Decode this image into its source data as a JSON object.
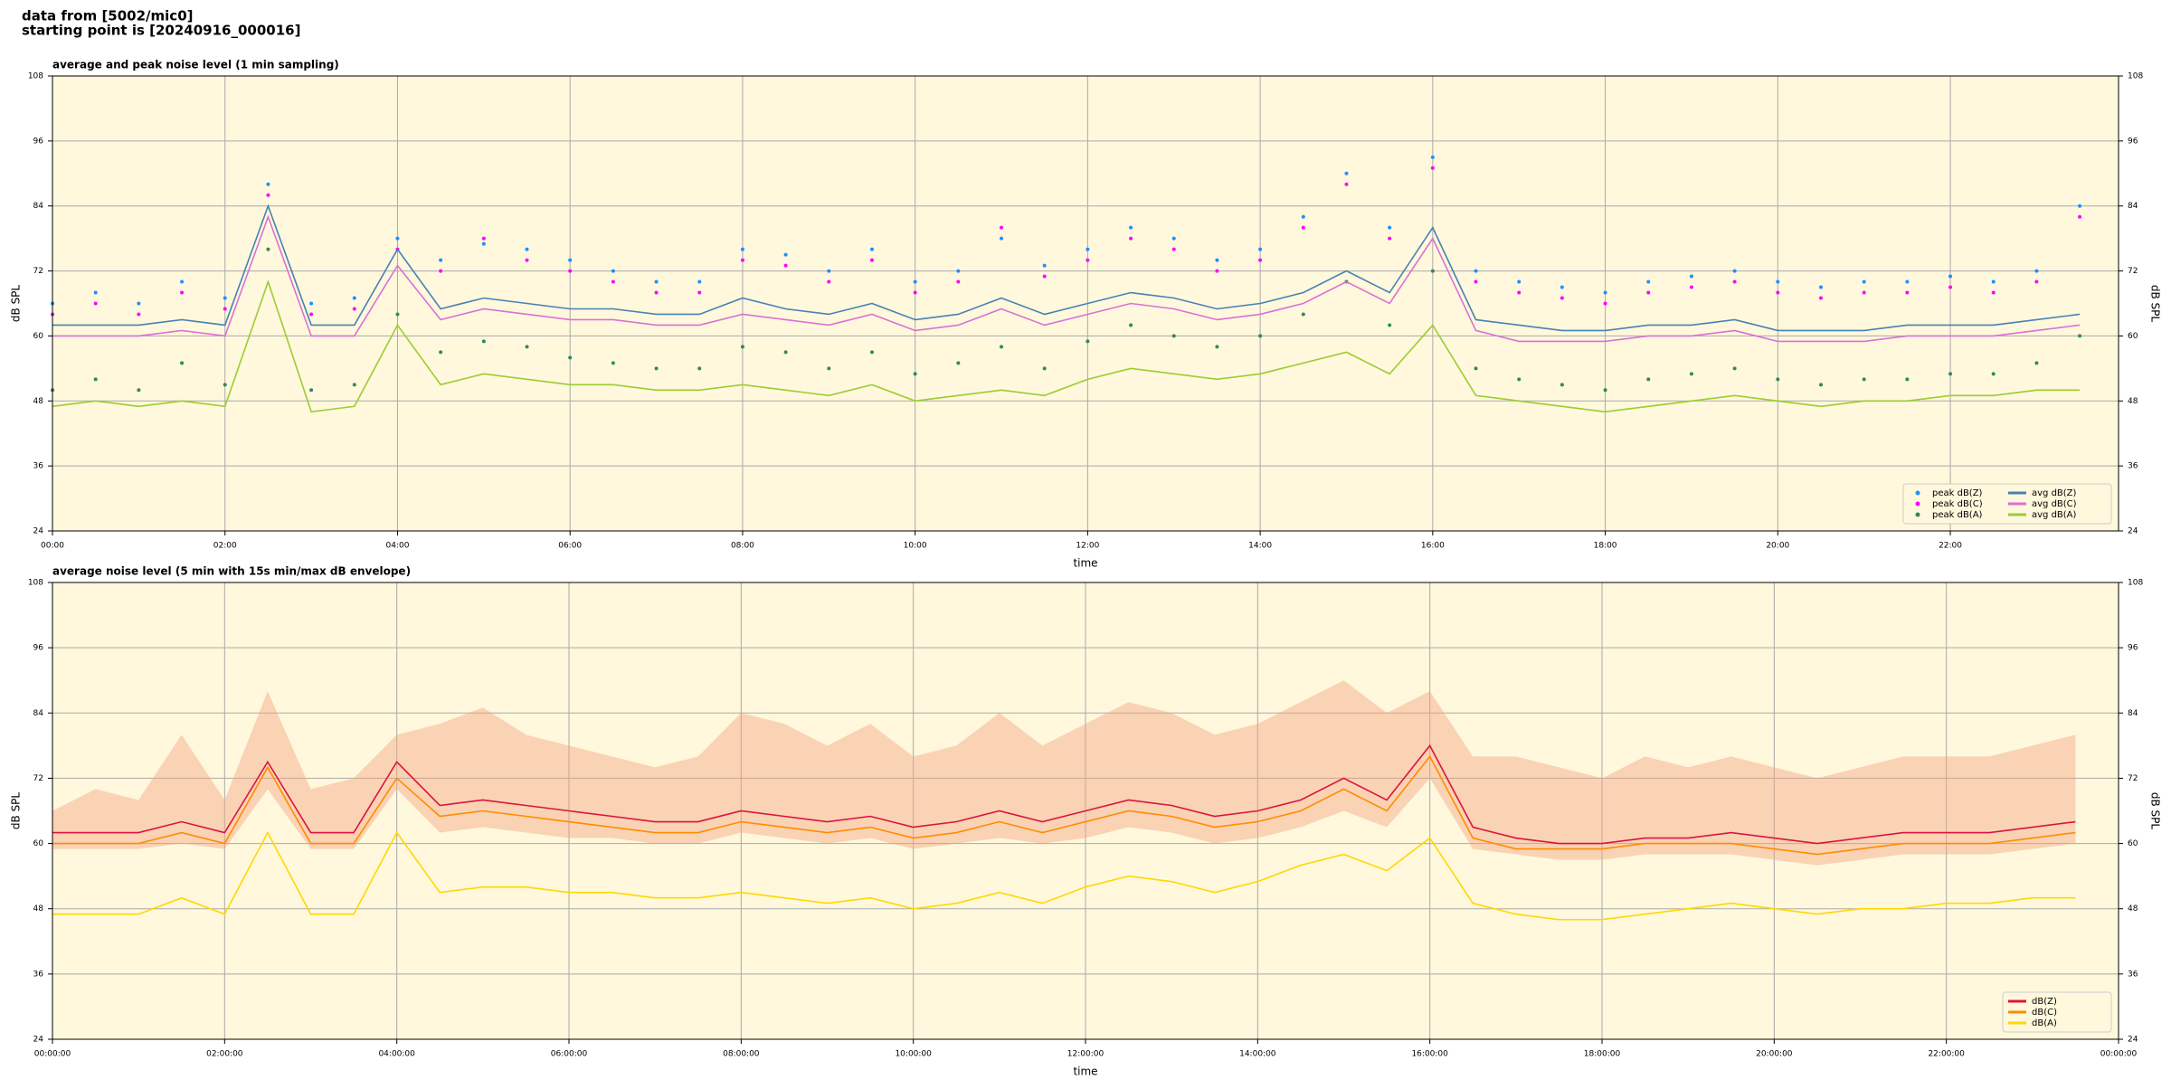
{
  "header": {
    "line1": "data from [5002/mic0]",
    "line2": "starting point is [20240916_000016]"
  },
  "chart_data": [
    {
      "type": "line",
      "title": "average and peak noise level (1 min sampling)",
      "xlabel": "time",
      "ylabel": "dB SPL",
      "x": [
        0,
        0.5,
        1,
        1.5,
        2,
        2.5,
        3,
        3.5,
        4,
        4.5,
        5,
        5.5,
        6,
        6.5,
        7,
        7.5,
        8,
        8.5,
        9,
        9.5,
        10,
        10.5,
        11,
        11.5,
        12,
        12.5,
        13,
        13.5,
        14,
        14.5,
        15,
        15.5,
        16,
        16.5,
        17,
        17.5,
        18,
        18.5,
        19,
        19.5,
        20,
        20.5,
        21,
        21.5,
        22,
        22.5,
        23,
        23.5
      ],
      "xlim": [
        0,
        23.95
      ],
      "ylim": [
        24,
        108
      ],
      "yticks": [
        24,
        36,
        48,
        60,
        72,
        84,
        96,
        108
      ],
      "xticks": [
        {
          "value": 0,
          "label": "00:00"
        },
        {
          "value": 2,
          "label": "02:00"
        },
        {
          "value": 4,
          "label": "04:00"
        },
        {
          "value": 6,
          "label": "06:00"
        },
        {
          "value": 8,
          "label": "08:00"
        },
        {
          "value": 10,
          "label": "10:00"
        },
        {
          "value": 12,
          "label": "12:00"
        },
        {
          "value": 14,
          "label": "14:00"
        },
        {
          "value": 16,
          "label": "16:00"
        },
        {
          "value": 18,
          "label": "18:00"
        },
        {
          "value": 20,
          "label": "20:00"
        },
        {
          "value": 22,
          "label": "22:00"
        }
      ],
      "grid": true,
      "legend": "lower right",
      "background": "#fff8dc",
      "series": [
        {
          "name": "peak dB(Z)",
          "mode": "markers",
          "color": "#1e90ff",
          "values": [
            66,
            68,
            66,
            70,
            67,
            88,
            66,
            67,
            78,
            74,
            77,
            76,
            74,
            72,
            70,
            70,
            76,
            75,
            72,
            76,
            70,
            72,
            78,
            73,
            76,
            80,
            78,
            74,
            76,
            82,
            90,
            80,
            93,
            72,
            70,
            69,
            68,
            70,
            71,
            72,
            70,
            69,
            70,
            70,
            71,
            70,
            72,
            84
          ]
        },
        {
          "name": "peak dB(C)",
          "mode": "markers",
          "color": "#ff00ff",
          "values": [
            64,
            66,
            64,
            68,
            65,
            86,
            64,
            65,
            76,
            72,
            78,
            74,
            72,
            70,
            68,
            68,
            74,
            73,
            70,
            74,
            68,
            70,
            80,
            71,
            74,
            78,
            76,
            72,
            74,
            80,
            88,
            78,
            91,
            70,
            68,
            67,
            66,
            68,
            69,
            70,
            68,
            67,
            68,
            68,
            69,
            68,
            70,
            82
          ]
        },
        {
          "name": "peak dB(A)",
          "mode": "markers",
          "color": "#2e8b57",
          "values": [
            50,
            52,
            50,
            55,
            51,
            76,
            50,
            51,
            64,
            57,
            59,
            58,
            56,
            55,
            54,
            54,
            58,
            57,
            54,
            57,
            53,
            55,
            58,
            54,
            59,
            62,
            60,
            58,
            60,
            64,
            70,
            62,
            72,
            54,
            52,
            51,
            50,
            52,
            53,
            54,
            52,
            51,
            52,
            52,
            53,
            53,
            55,
            60
          ]
        },
        {
          "name": "avg dB(Z)",
          "mode": "line",
          "color": "#4682b4",
          "values": [
            62,
            62,
            62,
            63,
            62,
            84,
            62,
            62,
            76,
            65,
            67,
            66,
            65,
            65,
            64,
            64,
            67,
            65,
            64,
            66,
            63,
            64,
            67,
            64,
            66,
            68,
            67,
            65,
            66,
            68,
            72,
            68,
            80,
            63,
            62,
            61,
            61,
            62,
            62,
            63,
            61,
            61,
            61,
            62,
            62,
            62,
            63,
            64
          ]
        },
        {
          "name": "avg dB(C)",
          "mode": "line",
          "color": "#da70d6",
          "values": [
            60,
            60,
            60,
            61,
            60,
            82,
            60,
            60,
            73,
            63,
            65,
            64,
            63,
            63,
            62,
            62,
            64,
            63,
            62,
            64,
            61,
            62,
            65,
            62,
            64,
            66,
            65,
            63,
            64,
            66,
            70,
            66,
            78,
            61,
            59,
            59,
            59,
            60,
            60,
            61,
            59,
            59,
            59,
            60,
            60,
            60,
            61,
            62
          ]
        },
        {
          "name": "avg dB(A)",
          "mode": "line",
          "color": "#9acd32",
          "values": [
            47,
            48,
            47,
            48,
            47,
            70,
            46,
            47,
            62,
            51,
            53,
            52,
            51,
            51,
            50,
            50,
            51,
            50,
            49,
            51,
            48,
            49,
            50,
            49,
            52,
            54,
            53,
            52,
            53,
            55,
            57,
            53,
            62,
            49,
            48,
            47,
            46,
            47,
            48,
            49,
            48,
            47,
            48,
            48,
            49,
            49,
            50,
            50
          ]
        }
      ]
    },
    {
      "type": "line",
      "title": "average noise level (5 min with 15s min/max dB envelope)",
      "xlabel": "time",
      "ylabel": "dB SPL",
      "x": [
        0,
        0.5,
        1,
        1.5,
        2,
        2.5,
        3,
        3.5,
        4,
        4.5,
        5,
        5.5,
        6,
        6.5,
        7,
        7.5,
        8,
        8.5,
        9,
        9.5,
        10,
        10.5,
        11,
        11.5,
        12,
        12.5,
        13,
        13.5,
        14,
        14.5,
        15,
        15.5,
        16,
        16.5,
        17,
        17.5,
        18,
        18.5,
        19,
        19.5,
        20,
        20.5,
        21,
        21.5,
        22,
        22.5,
        23,
        23.5
      ],
      "xlim": [
        0,
        24
      ],
      "ylim": [
        24,
        108
      ],
      "yticks": [
        24,
        36,
        48,
        60,
        72,
        84,
        96,
        108
      ],
      "xticks": [
        {
          "value": 0,
          "label": "00:00:00"
        },
        {
          "value": 2,
          "label": "02:00:00"
        },
        {
          "value": 4,
          "label": "04:00:00"
        },
        {
          "value": 6,
          "label": "06:00:00"
        },
        {
          "value": 8,
          "label": "08:00:00"
        },
        {
          "value": 10,
          "label": "10:00:00"
        },
        {
          "value": 12,
          "label": "12:00:00"
        },
        {
          "value": 14,
          "label": "14:00:00"
        },
        {
          "value": 16,
          "label": "16:00:00"
        },
        {
          "value": 18,
          "label": "18:00:00"
        },
        {
          "value": 20,
          "label": "20:00:00"
        },
        {
          "value": 22,
          "label": "22:00:00"
        },
        {
          "value": 24,
          "label": "00:00:00"
        }
      ],
      "grid": true,
      "legend": "lower right",
      "background": "#fff8dc",
      "envelope": {
        "color": "#f4a582",
        "low": [
          59,
          59,
          59,
          60,
          59,
          70,
          59,
          59,
          70,
          62,
          63,
          62,
          61,
          61,
          60,
          60,
          62,
          61,
          60,
          61,
          59,
          60,
          61,
          60,
          61,
          63,
          62,
          60,
          61,
          63,
          66,
          63,
          72,
          59,
          58,
          57,
          57,
          58,
          58,
          58,
          57,
          56,
          57,
          58,
          58,
          58,
          59,
          60
        ],
        "high": [
          66,
          70,
          68,
          80,
          68,
          88,
          70,
          72,
          80,
          82,
          85,
          80,
          78,
          76,
          74,
          76,
          84,
          82,
          78,
          82,
          76,
          78,
          84,
          78,
          82,
          86,
          84,
          80,
          82,
          86,
          90,
          84,
          88,
          76,
          76,
          74,
          72,
          76,
          74,
          76,
          74,
          72,
          74,
          76,
          76,
          76,
          78,
          80
        ]
      },
      "series": [
        {
          "name": "dB(Z)",
          "mode": "line",
          "color": "#dc143c",
          "values": [
            62,
            62,
            62,
            64,
            62,
            75,
            62,
            62,
            75,
            67,
            68,
            67,
            66,
            65,
            64,
            64,
            66,
            65,
            64,
            65,
            63,
            64,
            66,
            64,
            66,
            68,
            67,
            65,
            66,
            68,
            72,
            68,
            78,
            63,
            61,
            60,
            60,
            61,
            61,
            62,
            61,
            60,
            61,
            62,
            62,
            62,
            63,
            64
          ]
        },
        {
          "name": "dB(C)",
          "mode": "line",
          "color": "#ff8c00",
          "values": [
            60,
            60,
            60,
            62,
            60,
            74,
            60,
            60,
            72,
            65,
            66,
            65,
            64,
            63,
            62,
            62,
            64,
            63,
            62,
            63,
            61,
            62,
            64,
            62,
            64,
            66,
            65,
            63,
            64,
            66,
            70,
            66,
            76,
            61,
            59,
            59,
            59,
            60,
            60,
            60,
            59,
            58,
            59,
            60,
            60,
            60,
            61,
            62
          ]
        },
        {
          "name": "dB(A)",
          "mode": "line",
          "color": "#ffd700",
          "values": [
            47,
            47,
            47,
            50,
            47,
            62,
            47,
            47,
            62,
            51,
            52,
            52,
            51,
            51,
            50,
            50,
            51,
            50,
            49,
            50,
            48,
            49,
            51,
            49,
            52,
            54,
            53,
            51,
            53,
            56,
            58,
            55,
            61,
            49,
            47,
            46,
            46,
            47,
            48,
            49,
            48,
            47,
            48,
            48,
            49,
            49,
            50,
            50
          ]
        }
      ]
    }
  ]
}
